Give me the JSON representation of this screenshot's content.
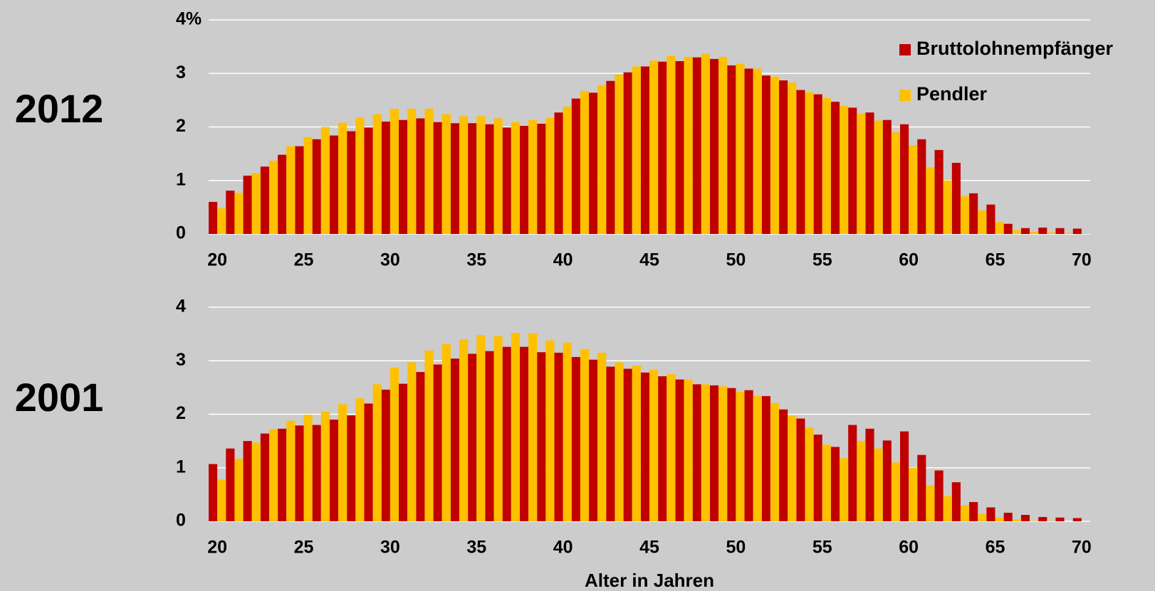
{
  "chart_data": [
    {
      "type": "bar",
      "title": "2012",
      "x": [
        20,
        21,
        22,
        23,
        24,
        25,
        26,
        27,
        28,
        29,
        30,
        31,
        32,
        33,
        34,
        35,
        36,
        37,
        38,
        39,
        40,
        41,
        42,
        43,
        44,
        45,
        46,
        47,
        48,
        49,
        50,
        51,
        52,
        53,
        54,
        55,
        56,
        57,
        58,
        59,
        60,
        61,
        62,
        63,
        64,
        65,
        66,
        67,
        68,
        69,
        70
      ],
      "series": [
        {
          "name": "Bruttolohnempfänger",
          "color": "#c00000",
          "values": [
            0.6,
            0.81,
            1.09,
            1.26,
            1.48,
            1.64,
            1.77,
            1.84,
            1.92,
            1.99,
            2.1,
            2.13,
            2.16,
            2.09,
            2.07,
            2.07,
            2.05,
            1.99,
            2.02,
            2.06,
            2.27,
            2.53,
            2.64,
            2.86,
            3.02,
            3.13,
            3.22,
            3.23,
            3.3,
            3.27,
            3.15,
            3.09,
            2.96,
            2.87,
            2.69,
            2.61,
            2.47,
            2.36,
            2.27,
            2.13,
            2.05,
            1.77,
            1.57,
            1.33,
            0.76,
            0.55,
            0.19,
            0.11,
            0.12,
            0.11,
            0.1
          ]
        },
        {
          "name": "Pendler",
          "color": "#ffc000",
          "values": [
            0.48,
            0.77,
            1.14,
            1.37,
            1.64,
            1.81,
            2.0,
            2.08,
            2.17,
            2.24,
            2.34,
            2.34,
            2.34,
            2.24,
            2.2,
            2.2,
            2.16,
            2.09,
            2.13,
            2.17,
            2.38,
            2.67,
            2.78,
            2.98,
            3.13,
            3.24,
            3.33,
            3.31,
            3.37,
            3.31,
            3.18,
            3.09,
            2.94,
            2.83,
            2.65,
            2.54,
            2.39,
            2.25,
            2.12,
            1.9,
            1.66,
            1.25,
            1.0,
            0.71,
            0.44,
            0.22,
            0.07,
            0.04,
            0.03,
            0.02,
            0.01
          ]
        }
      ],
      "xlim": [
        19.5,
        70.5
      ],
      "xticks": [
        20,
        25,
        30,
        35,
        40,
        45,
        50,
        55,
        60,
        65,
        70
      ],
      "ylim": [
        0,
        4
      ],
      "yticks": [
        0,
        1,
        2,
        3,
        {
          "value": 4,
          "label": "4%"
        }
      ],
      "grid": true,
      "legend": "upper right"
    },
    {
      "type": "bar",
      "title": "2001",
      "x_label": "Alter in Jahren",
      "x": [
        20,
        21,
        22,
        23,
        24,
        25,
        26,
        27,
        28,
        29,
        30,
        31,
        32,
        33,
        34,
        35,
        36,
        37,
        38,
        39,
        40,
        41,
        42,
        43,
        44,
        45,
        46,
        47,
        48,
        49,
        50,
        51,
        52,
        53,
        54,
        55,
        56,
        57,
        58,
        59,
        60,
        61,
        62,
        63,
        64,
        65,
        66,
        67,
        68,
        69,
        70
      ],
      "series": [
        {
          "color": "#c00000",
          "values": [
            1.07,
            1.36,
            1.5,
            1.64,
            1.73,
            1.79,
            1.8,
            1.9,
            1.98,
            2.2,
            2.46,
            2.57,
            2.79,
            2.93,
            3.04,
            3.13,
            3.18,
            3.26,
            3.26,
            3.16,
            3.15,
            3.07,
            3.02,
            2.89,
            2.85,
            2.78,
            2.71,
            2.65,
            2.56,
            2.54,
            2.49,
            2.45,
            2.34,
            2.09,
            1.92,
            1.62,
            1.39,
            1.8,
            1.73,
            1.51,
            1.68,
            1.24,
            0.95,
            0.73,
            0.36,
            0.26,
            0.16,
            0.12,
            0.08,
            0.07,
            0.06
          ]
        },
        {
          "color": "#ffc000",
          "values": [
            0.78,
            1.17,
            1.47,
            1.72,
            1.88,
            1.99,
            2.05,
            2.19,
            2.3,
            2.56,
            2.87,
            2.97,
            3.19,
            3.31,
            3.4,
            3.48,
            3.46,
            3.52,
            3.51,
            3.38,
            3.34,
            3.22,
            3.15,
            2.97,
            2.91,
            2.83,
            2.75,
            2.65,
            2.56,
            2.52,
            2.42,
            2.34,
            2.21,
            1.97,
            1.75,
            1.43,
            1.18,
            1.5,
            1.36,
            1.1,
            1.0,
            0.67,
            0.47,
            0.3,
            0.14,
            0.07,
            0.03,
            0.01,
            0.01,
            0,
            0
          ]
        }
      ],
      "xlim": [
        19.5,
        70.5
      ],
      "xticks": [
        20,
        25,
        30,
        35,
        40,
        45,
        50,
        55,
        60,
        65,
        70
      ],
      "ylim": [
        0,
        4
      ],
      "yticks": [
        0,
        1,
        2,
        3,
        4
      ],
      "grid": true
    }
  ]
}
